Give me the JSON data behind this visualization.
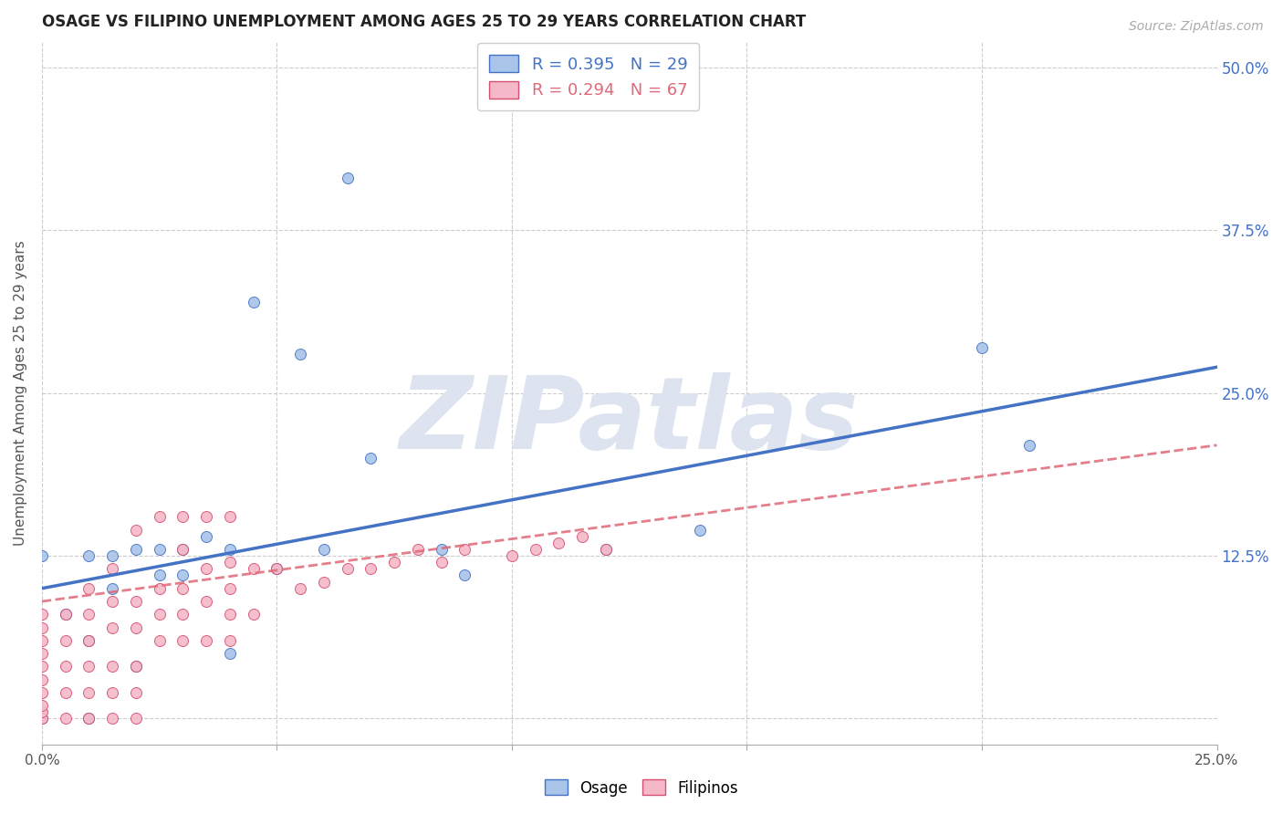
{
  "title": "OSAGE VS FILIPINO UNEMPLOYMENT AMONG AGES 25 TO 29 YEARS CORRELATION CHART",
  "source": "Source: ZipAtlas.com",
  "ylabel": "Unemployment Among Ages 25 to 29 years",
  "xlim": [
    0.0,
    0.25
  ],
  "ylim": [
    -0.02,
    0.52
  ],
  "xticks": [
    0.0,
    0.05,
    0.1,
    0.15,
    0.2,
    0.25
  ],
  "yticks": [
    0.0,
    0.125,
    0.25,
    0.375,
    0.5
  ],
  "ytick_labels": [
    "",
    "12.5%",
    "25.0%",
    "37.5%",
    "50.0%"
  ],
  "xtick_labels": [
    "0.0%",
    "",
    "",
    "",
    "",
    "25.0%"
  ],
  "osage_R": 0.395,
  "osage_N": 29,
  "filipino_R": 0.294,
  "filipino_N": 67,
  "osage_color": "#a8c4e8",
  "filipino_color": "#f5b8c8",
  "osage_line_color": "#4472c4",
  "filipino_line_color": "#e06878",
  "watermark": "ZIPatlas",
  "watermark_color": "#dde4f0",
  "background_color": "#ffffff",
  "grid_color": "#cccccc",
  "osage_x": [
    0.0,
    0.0,
    0.005,
    0.01,
    0.01,
    0.01,
    0.015,
    0.015,
    0.02,
    0.02,
    0.025,
    0.025,
    0.03,
    0.03,
    0.035,
    0.04,
    0.04,
    0.045,
    0.05,
    0.055,
    0.06,
    0.065,
    0.07,
    0.085,
    0.09,
    0.12,
    0.14,
    0.2,
    0.21
  ],
  "osage_y": [
    0.0,
    0.125,
    0.08,
    0.0,
    0.06,
    0.125,
    0.1,
    0.125,
    0.04,
    0.13,
    0.11,
    0.13,
    0.11,
    0.13,
    0.14,
    0.05,
    0.13,
    0.32,
    0.115,
    0.28,
    0.13,
    0.415,
    0.2,
    0.13,
    0.11,
    0.13,
    0.145,
    0.285,
    0.21
  ],
  "filipino_x": [
    0.0,
    0.0,
    0.0,
    0.0,
    0.0,
    0.0,
    0.0,
    0.0,
    0.0,
    0.0,
    0.005,
    0.005,
    0.005,
    0.005,
    0.005,
    0.01,
    0.01,
    0.01,
    0.01,
    0.01,
    0.01,
    0.015,
    0.015,
    0.015,
    0.015,
    0.015,
    0.015,
    0.02,
    0.02,
    0.02,
    0.02,
    0.02,
    0.02,
    0.025,
    0.025,
    0.025,
    0.025,
    0.03,
    0.03,
    0.03,
    0.03,
    0.03,
    0.035,
    0.035,
    0.035,
    0.035,
    0.04,
    0.04,
    0.04,
    0.04,
    0.04,
    0.045,
    0.045,
    0.05,
    0.055,
    0.06,
    0.065,
    0.07,
    0.075,
    0.08,
    0.085,
    0.09,
    0.1,
    0.105,
    0.11,
    0.115,
    0.12
  ],
  "filipino_y": [
    0.0,
    0.005,
    0.01,
    0.02,
    0.03,
    0.04,
    0.05,
    0.06,
    0.07,
    0.08,
    0.0,
    0.02,
    0.04,
    0.06,
    0.08,
    0.0,
    0.02,
    0.04,
    0.06,
    0.08,
    0.1,
    0.0,
    0.02,
    0.04,
    0.07,
    0.09,
    0.115,
    0.0,
    0.02,
    0.04,
    0.07,
    0.09,
    0.145,
    0.06,
    0.08,
    0.1,
    0.155,
    0.06,
    0.08,
    0.1,
    0.13,
    0.155,
    0.06,
    0.09,
    0.115,
    0.155,
    0.06,
    0.08,
    0.1,
    0.12,
    0.155,
    0.08,
    0.115,
    0.115,
    0.1,
    0.105,
    0.115,
    0.115,
    0.12,
    0.13,
    0.12,
    0.13,
    0.125,
    0.13,
    0.135,
    0.14,
    0.13
  ]
}
